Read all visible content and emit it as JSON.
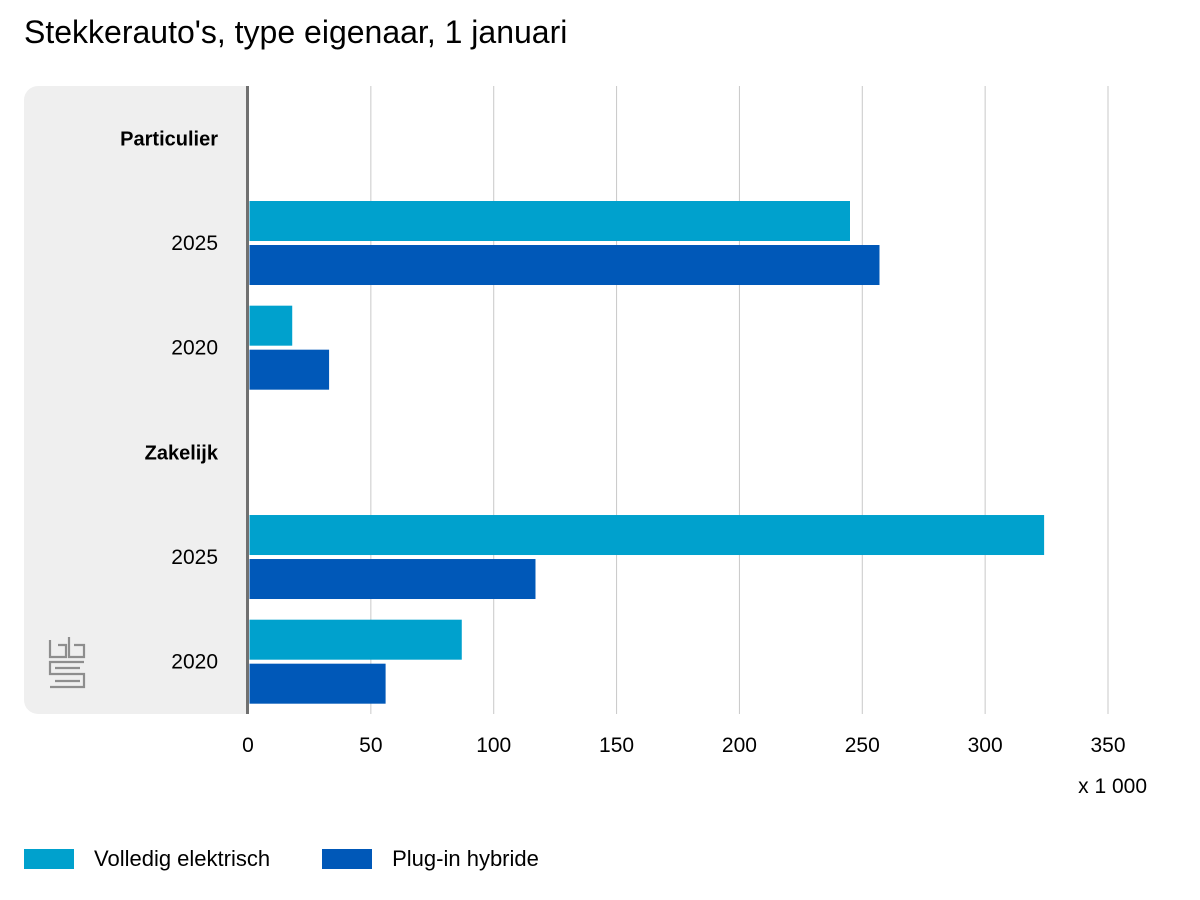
{
  "chart_data": {
    "type": "bar",
    "orientation": "horizontal",
    "title": "Stekkerauto's, type eigenaar, 1 januari",
    "unit_label": "x 1 000",
    "xlim": [
      0,
      350
    ],
    "x_ticks": [
      "0",
      "50",
      "100",
      "150",
      "200",
      "250",
      "300",
      "350"
    ],
    "grid": true,
    "legend_position": "bottom-left",
    "groups": [
      {
        "label": "Particulier",
        "rows": [
          {
            "label": "2025",
            "values": [
              245,
              257
            ]
          },
          {
            "label": "2020",
            "values": [
              18,
              33
            ]
          }
        ]
      },
      {
        "label": "Zakelijk",
        "rows": [
          {
            "label": "2025",
            "values": [
              324,
              117
            ]
          },
          {
            "label": "2020",
            "values": [
              87,
              56
            ]
          }
        ]
      }
    ],
    "series": [
      {
        "name": "Volledig elektrisch",
        "color": "#00a1cd"
      },
      {
        "name": "Plug-in hybride",
        "color": "#0058b8"
      }
    ],
    "logo": "cbs-logo"
  }
}
